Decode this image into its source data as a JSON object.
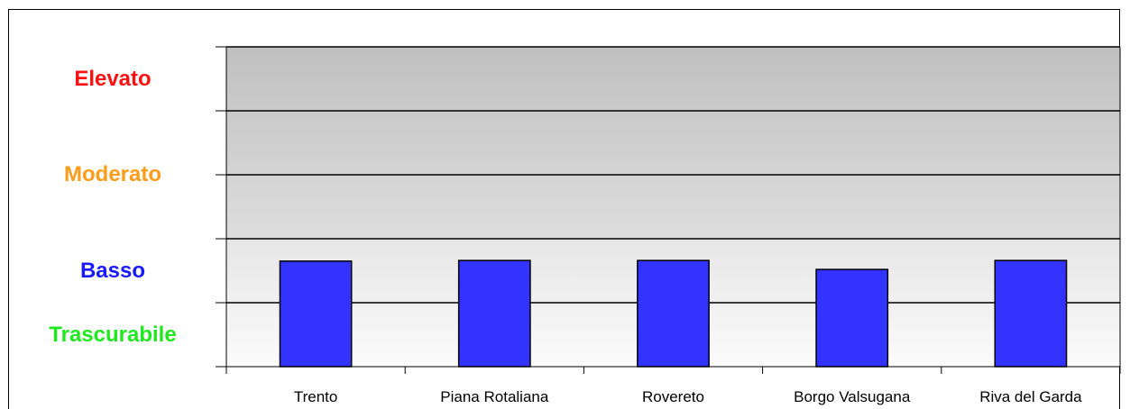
{
  "chart_data": {
    "type": "bar",
    "categories": [
      "Trento",
      "Piana Rotaliana",
      "Rovereto",
      "Borgo Valsugana",
      "Riva del Garda"
    ],
    "values": [
      1.65,
      1.66,
      1.66,
      1.52,
      1.66
    ],
    "ylim": [
      0,
      5
    ],
    "y_levels": [
      {
        "label": "Elevato",
        "value": 4.5,
        "color": "#ff1010"
      },
      {
        "label": "Moderato",
        "value": 3.0,
        "color": "#ff9c1a"
      },
      {
        "label": "Basso",
        "value": 1.5,
        "color": "#1a1aff"
      },
      {
        "label": "Trascurabile",
        "value": 0.5,
        "color": "#1fe81f"
      }
    ],
    "gridlines": [
      1,
      2,
      3,
      4,
      5
    ],
    "bar_color": "#3333ff",
    "background_bands": [
      {
        "from": 0,
        "to": 2,
        "color_top": "#e6e6e6",
        "color_bottom": "#fbfbfb"
      },
      {
        "from": 2,
        "to": 5,
        "color_top": "#c0c0c0",
        "color_bottom": "#dddddd"
      }
    ],
    "title": "",
    "xlabel": "",
    "ylabel": "",
    "grid": true,
    "legend": "none"
  }
}
